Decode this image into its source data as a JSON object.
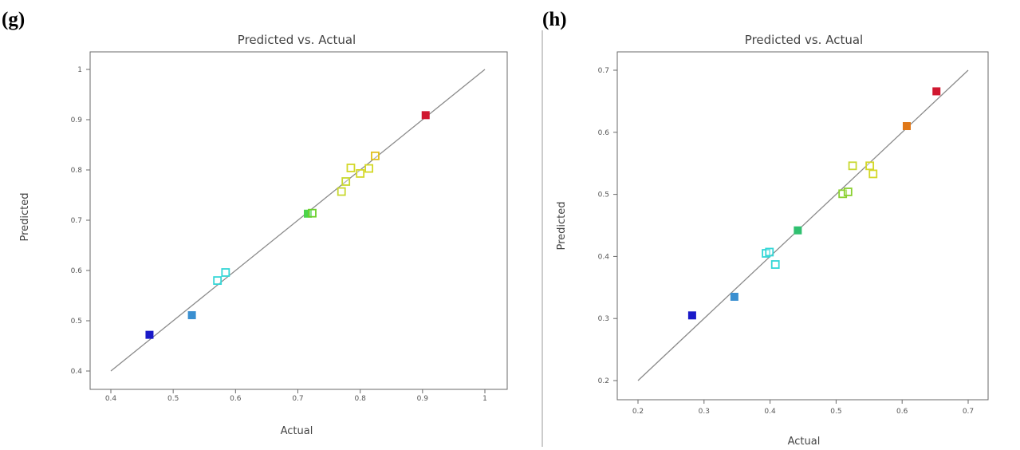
{
  "panels": [
    {
      "label": "(g)"
    },
    {
      "label": "(h)"
    }
  ],
  "chart_data": [
    {
      "type": "scatter",
      "title": "Predicted vs. Actual",
      "xlabel": "Actual",
      "ylabel": "Predicted",
      "xlim": [
        0.4,
        1
      ],
      "ylim": [
        0.4,
        1
      ],
      "xticks": [
        "0.4",
        "0.5",
        "0.6",
        "0.7",
        "0.8",
        "0.9",
        "1"
      ],
      "yticks": [
        "0.4",
        "0.5",
        "0.6",
        "0.7",
        "0.8",
        "0.9",
        "1"
      ],
      "reference_line": [
        [
          0.4,
          0.4
        ],
        [
          1,
          1
        ]
      ],
      "grid": false,
      "points": [
        {
          "x": 0.462,
          "y": 0.472,
          "color": "#1a1ac8",
          "hollow": false
        },
        {
          "x": 0.53,
          "y": 0.511,
          "color": "#3a8fd0",
          "hollow": false
        },
        {
          "x": 0.571,
          "y": 0.58,
          "color": "#33d6d6",
          "hollow": true
        },
        {
          "x": 0.584,
          "y": 0.596,
          "color": "#33d6d6",
          "hollow": true
        },
        {
          "x": 0.716,
          "y": 0.713,
          "color": "#4cd44c",
          "hollow": false
        },
        {
          "x": 0.723,
          "y": 0.714,
          "color": "#6ad02a",
          "hollow": true
        },
        {
          "x": 0.77,
          "y": 0.757,
          "color": "#c8d830",
          "hollow": true
        },
        {
          "x": 0.777,
          "y": 0.777,
          "color": "#c8d830",
          "hollow": true
        },
        {
          "x": 0.785,
          "y": 0.804,
          "color": "#d4d828",
          "hollow": true
        },
        {
          "x": 0.8,
          "y": 0.793,
          "color": "#d4d828",
          "hollow": true
        },
        {
          "x": 0.814,
          "y": 0.803,
          "color": "#d4d828",
          "hollow": true
        },
        {
          "x": 0.824,
          "y": 0.828,
          "color": "#e0c020",
          "hollow": true
        },
        {
          "x": 0.905,
          "y": 0.909,
          "color": "#d01830",
          "hollow": false
        }
      ]
    },
    {
      "type": "scatter",
      "title": "Predicted vs. Actual",
      "xlabel": "Actual",
      "ylabel": "Predicted",
      "xlim": [
        0.2,
        0.7
      ],
      "ylim": [
        0.2,
        0.7
      ],
      "xticks": [
        "0.2",
        "0.3",
        "0.4",
        "0.5",
        "0.6",
        "0.7"
      ],
      "yticks": [
        "0.2",
        "0.3",
        "0.4",
        "0.5",
        "0.6",
        "0.7"
      ],
      "reference_line": [
        [
          0.2,
          0.2
        ],
        [
          0.7,
          0.7
        ]
      ],
      "grid": false,
      "points": [
        {
          "x": 0.282,
          "y": 0.305,
          "color": "#1a1ac8",
          "hollow": false
        },
        {
          "x": 0.346,
          "y": 0.335,
          "color": "#3a8fd0",
          "hollow": false
        },
        {
          "x": 0.394,
          "y": 0.405,
          "color": "#33d6d6",
          "hollow": true
        },
        {
          "x": 0.399,
          "y": 0.407,
          "color": "#33d6d6",
          "hollow": true
        },
        {
          "x": 0.408,
          "y": 0.387,
          "color": "#33d6d6",
          "hollow": true
        },
        {
          "x": 0.442,
          "y": 0.442,
          "color": "#30c070",
          "hollow": false
        },
        {
          "x": 0.51,
          "y": 0.501,
          "color": "#8ad030",
          "hollow": true
        },
        {
          "x": 0.518,
          "y": 0.504,
          "color": "#8ad030",
          "hollow": true
        },
        {
          "x": 0.525,
          "y": 0.546,
          "color": "#c8d830",
          "hollow": true
        },
        {
          "x": 0.551,
          "y": 0.546,
          "color": "#d4d828",
          "hollow": true
        },
        {
          "x": 0.556,
          "y": 0.533,
          "color": "#d4d828",
          "hollow": true
        },
        {
          "x": 0.607,
          "y": 0.61,
          "color": "#e07818",
          "hollow": false
        },
        {
          "x": 0.652,
          "y": 0.666,
          "color": "#d01830",
          "hollow": false
        }
      ]
    }
  ]
}
